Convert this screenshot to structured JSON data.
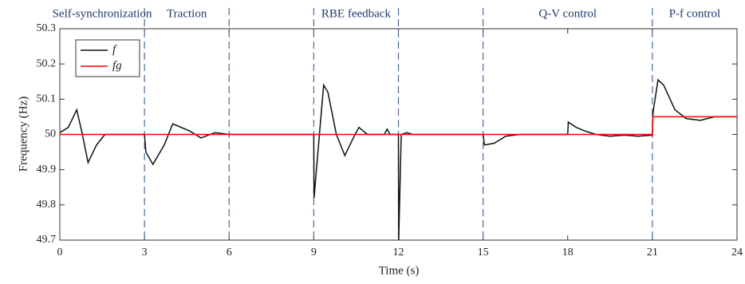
{
  "chart_data": {
    "type": "line",
    "xlabel": "Time (s)",
    "ylabel": "Frequency (Hz)",
    "x": [
      0,
      0.3,
      0.6,
      0.8,
      1.0,
      1.3,
      1.6,
      2,
      3,
      3.05,
      3.3,
      3.7,
      4.0,
      4.6,
      5.0,
      5.5,
      6,
      9,
      9.01,
      9.2,
      9.35,
      9.5,
      9.8,
      10.1,
      10.4,
      10.6,
      10.9,
      11.5,
      11.6,
      11.7,
      12,
      12.01,
      12.1,
      12.3,
      12.5,
      15,
      15.05,
      15.4,
      15.8,
      16.3,
      18,
      18.02,
      18.3,
      18.6,
      19,
      19.5,
      20,
      20.5,
      21,
      21.02,
      21.2,
      21.4,
      21.8,
      22.2,
      22.7,
      23.2,
      24
    ],
    "series": [
      {
        "name": "f",
        "color": "#111111",
        "values": [
          50.005,
          50.02,
          50.07,
          50.0,
          49.92,
          49.97,
          50.0,
          50.0,
          50.0,
          49.95,
          49.915,
          49.97,
          50.03,
          50.01,
          49.99,
          50.005,
          50.0,
          50.0,
          49.82,
          50.0,
          50.14,
          50.12,
          50.0,
          49.94,
          49.99,
          50.02,
          50.0,
          50.0,
          50.015,
          50.0,
          50.0,
          49.7,
          50.0,
          50.005,
          50.0,
          50.0,
          49.97,
          49.975,
          49.995,
          50.0,
          50.0,
          50.035,
          50.02,
          50.01,
          50.0,
          49.995,
          49.998,
          49.995,
          49.998,
          50.06,
          50.155,
          50.14,
          50.07,
          50.045,
          50.04,
          50.05,
          50.05
        ]
      },
      {
        "name": "fg",
        "color": "#ff0000",
        "values": [
          50,
          50,
          50,
          50,
          50,
          50,
          50,
          50,
          50,
          50,
          50,
          50,
          50,
          50,
          50,
          50,
          50,
          50,
          50,
          50,
          50,
          50,
          50,
          50,
          50,
          50,
          50,
          50,
          50,
          50,
          50,
          50,
          50,
          50,
          50,
          50,
          50,
          50,
          50,
          50,
          50,
          50,
          50,
          50,
          50,
          50,
          50,
          50,
          50,
          50.05,
          50.05,
          50.05,
          50.05,
          50.05,
          50.05,
          50.05,
          50.05
        ]
      }
    ],
    "xlim": [
      0,
      24
    ],
    "xticks": [
      0,
      3,
      6,
      9,
      12,
      15,
      18,
      21,
      24
    ],
    "ylim": [
      49.7,
      50.3
    ],
    "yticks": [
      49.7,
      49.8,
      49.9,
      50,
      50.1,
      50.2,
      50.3
    ],
    "legend": "upper-left",
    "phases": [
      {
        "label": "Self-synchronization",
        "start": 0,
        "end": 3
      },
      {
        "label": "Traction",
        "start": 3,
        "end": 6
      },
      {
        "label": "RBE feedback",
        "start": 9,
        "end": 12
      },
      {
        "label": "Q-V control",
        "start": 15,
        "end": 21
      },
      {
        "label": "P-f control",
        "start": 21,
        "end": 24
      }
    ]
  }
}
